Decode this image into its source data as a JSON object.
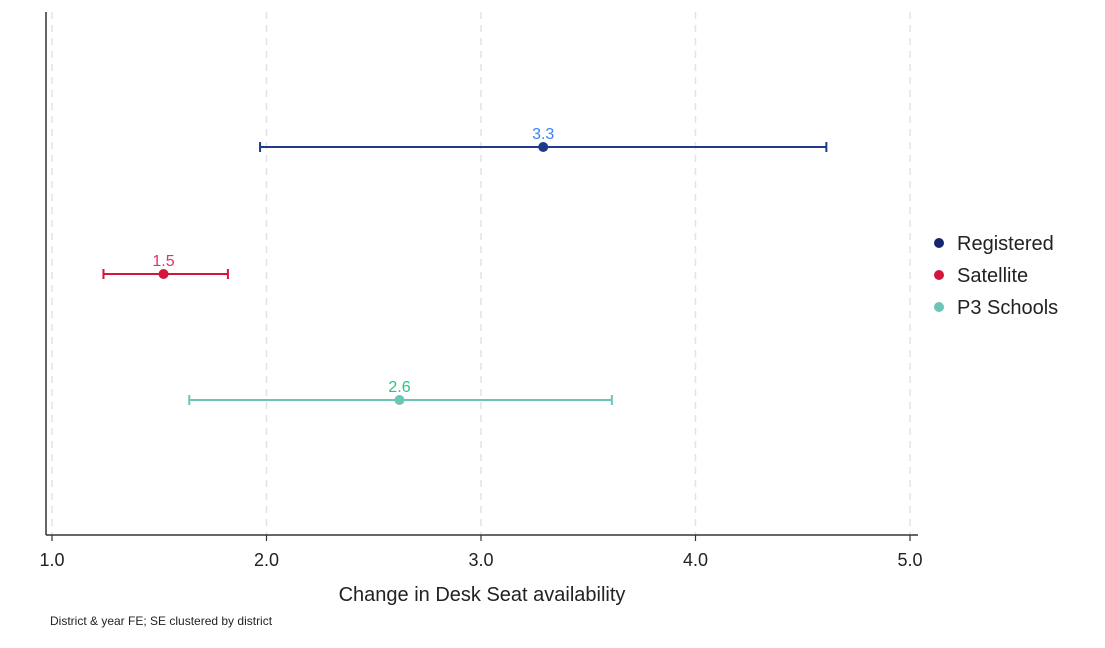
{
  "chart_data": {
    "type": "scatter",
    "subtype": "coefficient-plot-with-confidence-intervals",
    "title": "",
    "xlabel": "Change in Desk Seat availability",
    "ylabel": "",
    "xlim": [
      1.0,
      5.0
    ],
    "x_ticks": [
      1.0,
      2.0,
      3.0,
      4.0,
      5.0
    ],
    "x_tick_labels": [
      "1.0",
      "2.0",
      "3.0",
      "4.0",
      "5.0"
    ],
    "grid": "vertical dashed gridlines at x ticks",
    "legend_position": "right",
    "note": "District & year FE; SE clustered by district",
    "series": [
      {
        "name": "Registered",
        "estimate": 3.29,
        "ci_low": 1.97,
        "ci_high": 4.61,
        "label": "3.3",
        "color": "#1f3a8a",
        "label_color": "#3b82f6"
      },
      {
        "name": "Satellite",
        "estimate": 1.52,
        "ci_low": 1.24,
        "ci_high": 1.82,
        "label": "1.5",
        "color": "#d4153c",
        "label_color": "#e0316a"
      },
      {
        "name": "P3 Schools",
        "estimate": 2.62,
        "ci_low": 1.64,
        "ci_high": 3.61,
        "label": "2.6",
        "color": "#6cc4b6",
        "label_color": "#2fbf8f"
      }
    ]
  },
  "legend": {
    "items": [
      {
        "label": "Registered",
        "color": "#14266e"
      },
      {
        "label": "Satellite",
        "color": "#d4153c"
      },
      {
        "label": "P3 Schools",
        "color": "#6cc4b6"
      }
    ]
  }
}
